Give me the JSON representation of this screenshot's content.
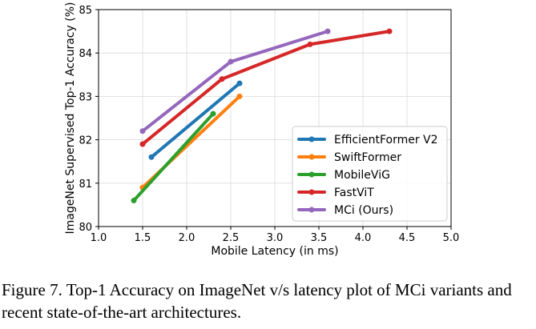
{
  "chart_data": {
    "type": "line",
    "xlabel": "Mobile Latency (in ms)",
    "ylabel": "ImageNet Supervised Top-1 Accuracy (%)",
    "xlim": [
      1.0,
      5.0
    ],
    "ylim": [
      80,
      85
    ],
    "xticks": [
      "1.0",
      "1.5",
      "2.0",
      "2.5",
      "3.0",
      "3.5",
      "4.0",
      "4.5",
      "5.0"
    ],
    "yticks": [
      "80",
      "81",
      "82",
      "83",
      "84",
      "85"
    ],
    "grid": true,
    "legend_position": "lower-right",
    "series": [
      {
        "name": "EfficientFormer V2",
        "color": "#1f77b4",
        "x": [
          1.6,
          2.6
        ],
        "y": [
          81.6,
          83.3
        ]
      },
      {
        "name": "SwiftFormer",
        "color": "#ff7f0e",
        "x": [
          1.5,
          2.6
        ],
        "y": [
          80.9,
          83.0
        ]
      },
      {
        "name": "MobileViG",
        "color": "#2ca02c",
        "x": [
          1.4,
          2.3
        ],
        "y": [
          80.6,
          82.6
        ]
      },
      {
        "name": "FastViT",
        "color": "#d62728",
        "x": [
          1.5,
          2.4,
          3.4,
          4.3
        ],
        "y": [
          81.9,
          83.4,
          84.2,
          84.5
        ]
      },
      {
        "name": "MCi (Ours)",
        "color": "#9467bd",
        "x": [
          1.5,
          2.5,
          3.6
        ],
        "y": [
          82.2,
          83.8,
          84.5
        ]
      }
    ]
  },
  "caption": {
    "text": "Figure 7. Top-1 Accuracy on ImageNet v/s latency plot of MCi variants and recent state-of-the-art architectures."
  }
}
